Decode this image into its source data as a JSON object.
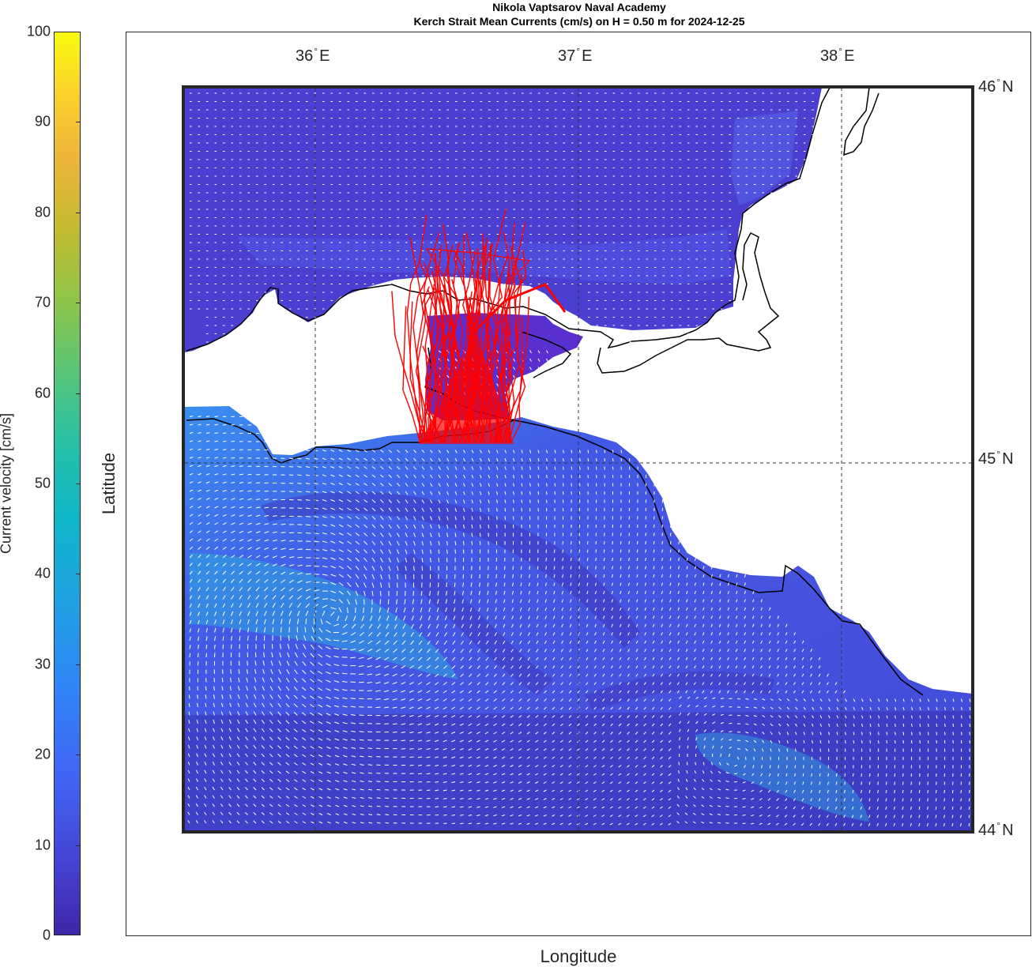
{
  "figure": {
    "title_line1": "Nikola Vaptsarov Naval Academy",
    "title_line2": "Kerch Strait Mean Currents (cm/s) on H = 0.50 m for 2024-12-25",
    "xlabel": "Longitude",
    "ylabel": "Latitude"
  },
  "colorbar": {
    "label": "Current velocity [cm/s]",
    "ticks": [
      "0",
      "10",
      "20",
      "30",
      "40",
      "50",
      "60",
      "70",
      "80",
      "90",
      "100"
    ],
    "range": [
      0,
      100
    ],
    "colormap": "parula"
  },
  "map_axes": {
    "lon_labels": [
      {
        "deg": "36",
        "hemi": "E",
        "value": 36
      },
      {
        "deg": "37",
        "hemi": "E",
        "value": 37
      },
      {
        "deg": "38",
        "hemi": "E",
        "value": 38
      }
    ],
    "lat_labels": [
      {
        "deg": "46",
        "hemi": "N",
        "value": 46
      },
      {
        "deg": "45",
        "hemi": "N",
        "value": 45
      },
      {
        "deg": "44",
        "hemi": "N",
        "value": 44
      }
    ],
    "lon_range": [
      35.5,
      38.5
    ],
    "lat_range": [
      44.0,
      46.0
    ],
    "grid": "dashed"
  },
  "colors": {
    "water_low": "#3f2fbf",
    "water_mid": "#4a55e8",
    "water_high": "#2fa3e0",
    "land": "#ffffff",
    "coastline": "#000000",
    "trajectories": "#ff0000",
    "arrows": "#ffffff"
  },
  "chart_data": {
    "type": "heatmap",
    "title": "Kerch Strait Mean Currents (cm/s) on H = 0.50 m for 2024-12-25",
    "xlabel": "Longitude",
    "ylabel": "Latitude",
    "xlim": [
      35.5,
      38.5
    ],
    "ylim": [
      44.0,
      46.0
    ],
    "value_range": [
      0,
      100
    ],
    "value_label": "Current velocity [cm/s]",
    "overlays": [
      "current vectors (white arrows)",
      "particle trajectories (red)",
      "coastline (black)"
    ]
  }
}
